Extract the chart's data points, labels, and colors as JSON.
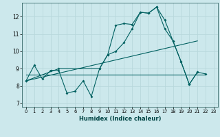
{
  "xlabel": "Humidex (Indice chaleur)",
  "background_color": "#cce8ec",
  "grid_color": "#b8d8dc",
  "line_color": "#006060",
  "xlim": [
    -0.5,
    23.5
  ],
  "ylim": [
    6.8,
    12.8
  ],
  "yticks": [
    7,
    8,
    9,
    10,
    11,
    12
  ],
  "xtick_labels": [
    "0",
    "1",
    "2",
    "3",
    "4",
    "5",
    "6",
    "7",
    "8",
    "9",
    "10",
    "11",
    "12",
    "13",
    "14",
    "15",
    "16",
    "17",
    "18",
    "19",
    "20",
    "21",
    "22",
    "23"
  ],
  "series1_x": [
    0,
    1,
    2,
    3,
    4,
    5,
    6,
    7,
    8,
    9,
    10,
    11,
    12,
    13,
    14,
    15,
    16,
    17,
    18,
    19,
    20,
    21
  ],
  "series1_y": [
    8.3,
    9.2,
    8.4,
    8.9,
    8.9,
    7.6,
    7.7,
    8.3,
    7.4,
    9.0,
    9.8,
    11.5,
    11.6,
    11.55,
    12.25,
    12.2,
    12.55,
    11.8,
    10.6,
    9.4,
    8.1,
    8.8
  ],
  "series2_x": [
    0,
    4,
    9,
    10,
    11,
    12,
    13,
    14,
    15,
    16,
    17,
    18,
    19,
    20,
    21,
    22
  ],
  "series2_y": [
    8.3,
    9.0,
    9.0,
    9.8,
    10.0,
    10.5,
    11.3,
    12.25,
    12.2,
    12.55,
    11.3,
    10.6,
    9.4,
    8.1,
    8.8,
    8.7
  ],
  "series3_x": [
    0,
    22
  ],
  "series3_y": [
    8.65,
    8.65
  ],
  "series4_x": [
    0,
    21
  ],
  "series4_y": [
    8.3,
    10.6
  ]
}
